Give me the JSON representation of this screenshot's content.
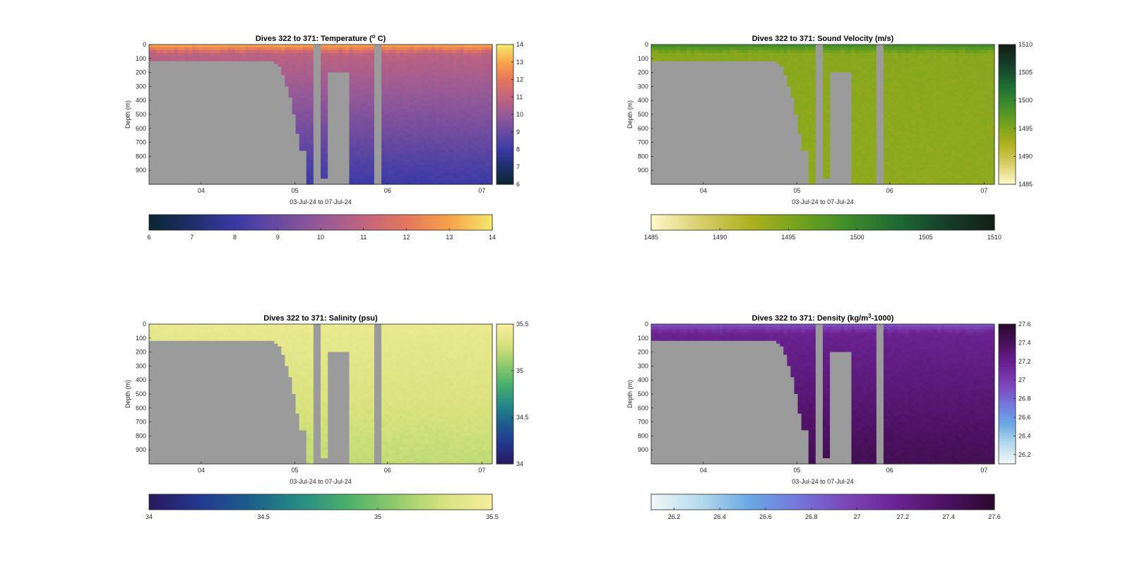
{
  "figure": {
    "background": "#ffffff",
    "mask_color": "#9b9b9b"
  },
  "chart_data": [
    {
      "type": "heatmap",
      "title_pre": "Dives 322 to 371: Temperature (",
      "title_sup": "o",
      "title_post": " C)",
      "xlabel": "03-Jul-24 to 07-Jul-24",
      "ylabel": "Depth (m)",
      "xticks": [
        "04",
        "05",
        "06",
        "07"
      ],
      "yticks": [
        "0",
        "100",
        "200",
        "300",
        "400",
        "500",
        "600",
        "700",
        "800",
        "900"
      ],
      "ylim": [
        0,
        1000
      ],
      "yreversed": true,
      "colorbar": {
        "range": [
          6,
          14
        ],
        "ticks": [
          "6",
          "7",
          "8",
          "9",
          "10",
          "11",
          "12",
          "13",
          "14"
        ]
      },
      "colormap": [
        "#0b2633",
        "#1f2f6b",
        "#3b3aa6",
        "#6a4aa0",
        "#965a97",
        "#c0647f",
        "#e3755d",
        "#f7a04a",
        "#f3e66a"
      ],
      "field": {
        "surface": 13.3,
        "mixed_layer_base": 10.9,
        "bottom": 8.0
      },
      "grid": false,
      "legend": "none"
    },
    {
      "type": "heatmap",
      "title_pre": "Dives 322 to 371: Sound Velocity (m/s)",
      "title_sup": "",
      "title_post": "",
      "xlabel": "03-Jul-24 to 07-Jul-24",
      "ylabel": "Depth (m)",
      "xticks": [
        "04",
        "05",
        "06",
        "07"
      ],
      "yticks": [
        "0",
        "100",
        "200",
        "300",
        "400",
        "500",
        "600",
        "700",
        "800",
        "900"
      ],
      "ylim": [
        0,
        1000
      ],
      "yreversed": true,
      "colorbar": {
        "range": [
          1485,
          1510
        ],
        "ticks": [
          "1485",
          "1490",
          "1495",
          "1500",
          "1505",
          "1510"
        ]
      },
      "colormap": [
        "#fdf7c8",
        "#d7ce6a",
        "#aeb11f",
        "#74a21d",
        "#3f8c2c",
        "#1f6b34",
        "#16402a",
        "#131f16"
      ],
      "field": {
        "surface": 1499.5,
        "mixed_layer_base": 1494.5,
        "bottom": 1494.0
      },
      "grid": false,
      "legend": "none"
    },
    {
      "type": "heatmap",
      "title_pre": "Dives 322 to 371: Salinity (psu)",
      "title_sup": "",
      "title_post": "",
      "xlabel": "03-Jul-24 to 07-Jul-24",
      "ylabel": "Depth (m)",
      "xticks": [
        "04",
        "05",
        "06",
        "07"
      ],
      "yticks": [
        "0",
        "100",
        "200",
        "300",
        "400",
        "500",
        "600",
        "700",
        "800",
        "900"
      ],
      "ylim": [
        0,
        1000
      ],
      "yreversed": true,
      "colorbar": {
        "range": [
          34,
          35.5
        ],
        "ticks": [
          "34",
          "34.5",
          "35",
          "35.5"
        ]
      },
      "colormap": [
        "#2a1a5e",
        "#23388f",
        "#1c5c8c",
        "#258a86",
        "#48ae6c",
        "#8fca6a",
        "#d6e27c",
        "#f6ed9e"
      ],
      "field": {
        "surface": 35.42,
        "mixed_layer_base": 35.4,
        "bottom": 35.22
      },
      "grid": false,
      "legend": "none"
    },
    {
      "type": "heatmap",
      "title_pre": "Dives 322 to 371: Density (kg/m",
      "title_sup": "3",
      "title_post": "-1000)",
      "xlabel": "03-Jul-24 to 07-Jul-24",
      "ylabel": "Depth (m)",
      "xticks": [
        "04",
        "05",
        "06",
        "07"
      ],
      "yticks": [
        "0",
        "100",
        "200",
        "300",
        "400",
        "500",
        "600",
        "700",
        "800",
        "900"
      ],
      "ylim": [
        0,
        1000
      ],
      "yreversed": true,
      "colorbar": {
        "range": [
          26.1,
          27.6
        ],
        "ticks": [
          "26.2",
          "26.4",
          "26.6",
          "26.8",
          "27",
          "27.2",
          "27.4",
          "27.6"
        ]
      },
      "colormap": [
        "#f0f7f7",
        "#b4d9ec",
        "#6aa7e3",
        "#7576db",
        "#7c45b8",
        "#6c2393",
        "#4d1263",
        "#2b0a2e"
      ],
      "field": {
        "surface": 26.88,
        "mixed_layer_base": 27.18,
        "bottom": 27.45
      },
      "grid": false,
      "legend": "none"
    }
  ]
}
